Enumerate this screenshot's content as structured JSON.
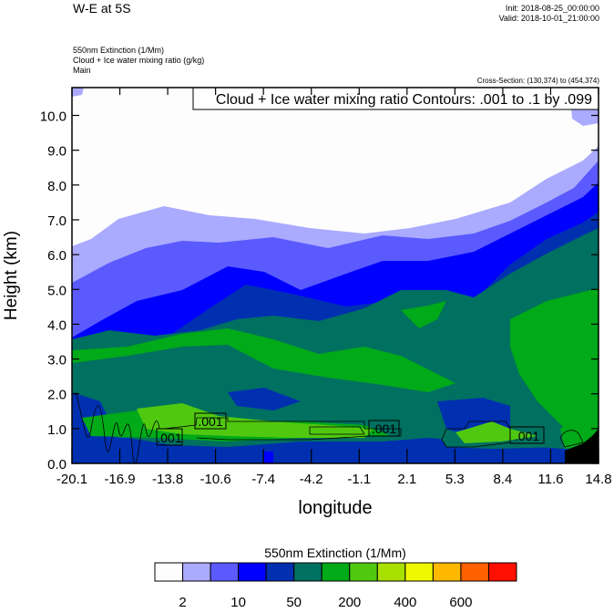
{
  "header": {
    "title": "W-E at 5S",
    "init": "Init: 2018-08-25_00:00:00",
    "valid": "Valid: 2018-10-01_21:00:00",
    "subtitles": [
      "550nm Extinction   (1/Mm)",
      "Cloud + Ice water mixing ratio   (g/kg)",
      "Main"
    ],
    "cross_section": "Cross-Section: (130,374) to (454,374)"
  },
  "chart_data": {
    "type": "heatmap",
    "subtype": "filled contour cross-section with line contour overlay",
    "xlabel": "longitude",
    "ylabel": "Height (km)",
    "xlim": [
      -20.1,
      14.8
    ],
    "ylim": [
      0,
      10.8
    ],
    "x_ticks": [
      "-20.1",
      "-16.9",
      "-13.8",
      "-10.6",
      "-7.4",
      "-4.2",
      "-1.1",
      "2.1",
      "5.3",
      "8.4",
      "11.6",
      "14.8"
    ],
    "y_ticks": [
      "0.0",
      "1.0",
      "2.0",
      "3.0",
      "4.0",
      "5.0",
      "6.0",
      "7.0",
      "8.0",
      "9.0",
      "10.0"
    ],
    "contour_info": "Cloud + Ice water mixing ratio Contours: .001 to .1 by .099",
    "contour_labels": [
      ".001",
      ".001",
      ".001",
      ".001"
    ],
    "terrain_color": "#000000",
    "colorbar": {
      "title": "550nm Extinction  (1/Mm)",
      "colors": [
        "#fdfdfd",
        "#aaaaff",
        "#5a5aff",
        "#0000ff",
        "#0030b0",
        "#007060",
        "#00aa18",
        "#50c810",
        "#a8e000",
        "#f0f800",
        "#ffb800",
        "#ff6000",
        "#ff1000"
      ],
      "labels": [
        "2",
        "10",
        "50",
        "200",
        "400",
        "600"
      ]
    }
  }
}
